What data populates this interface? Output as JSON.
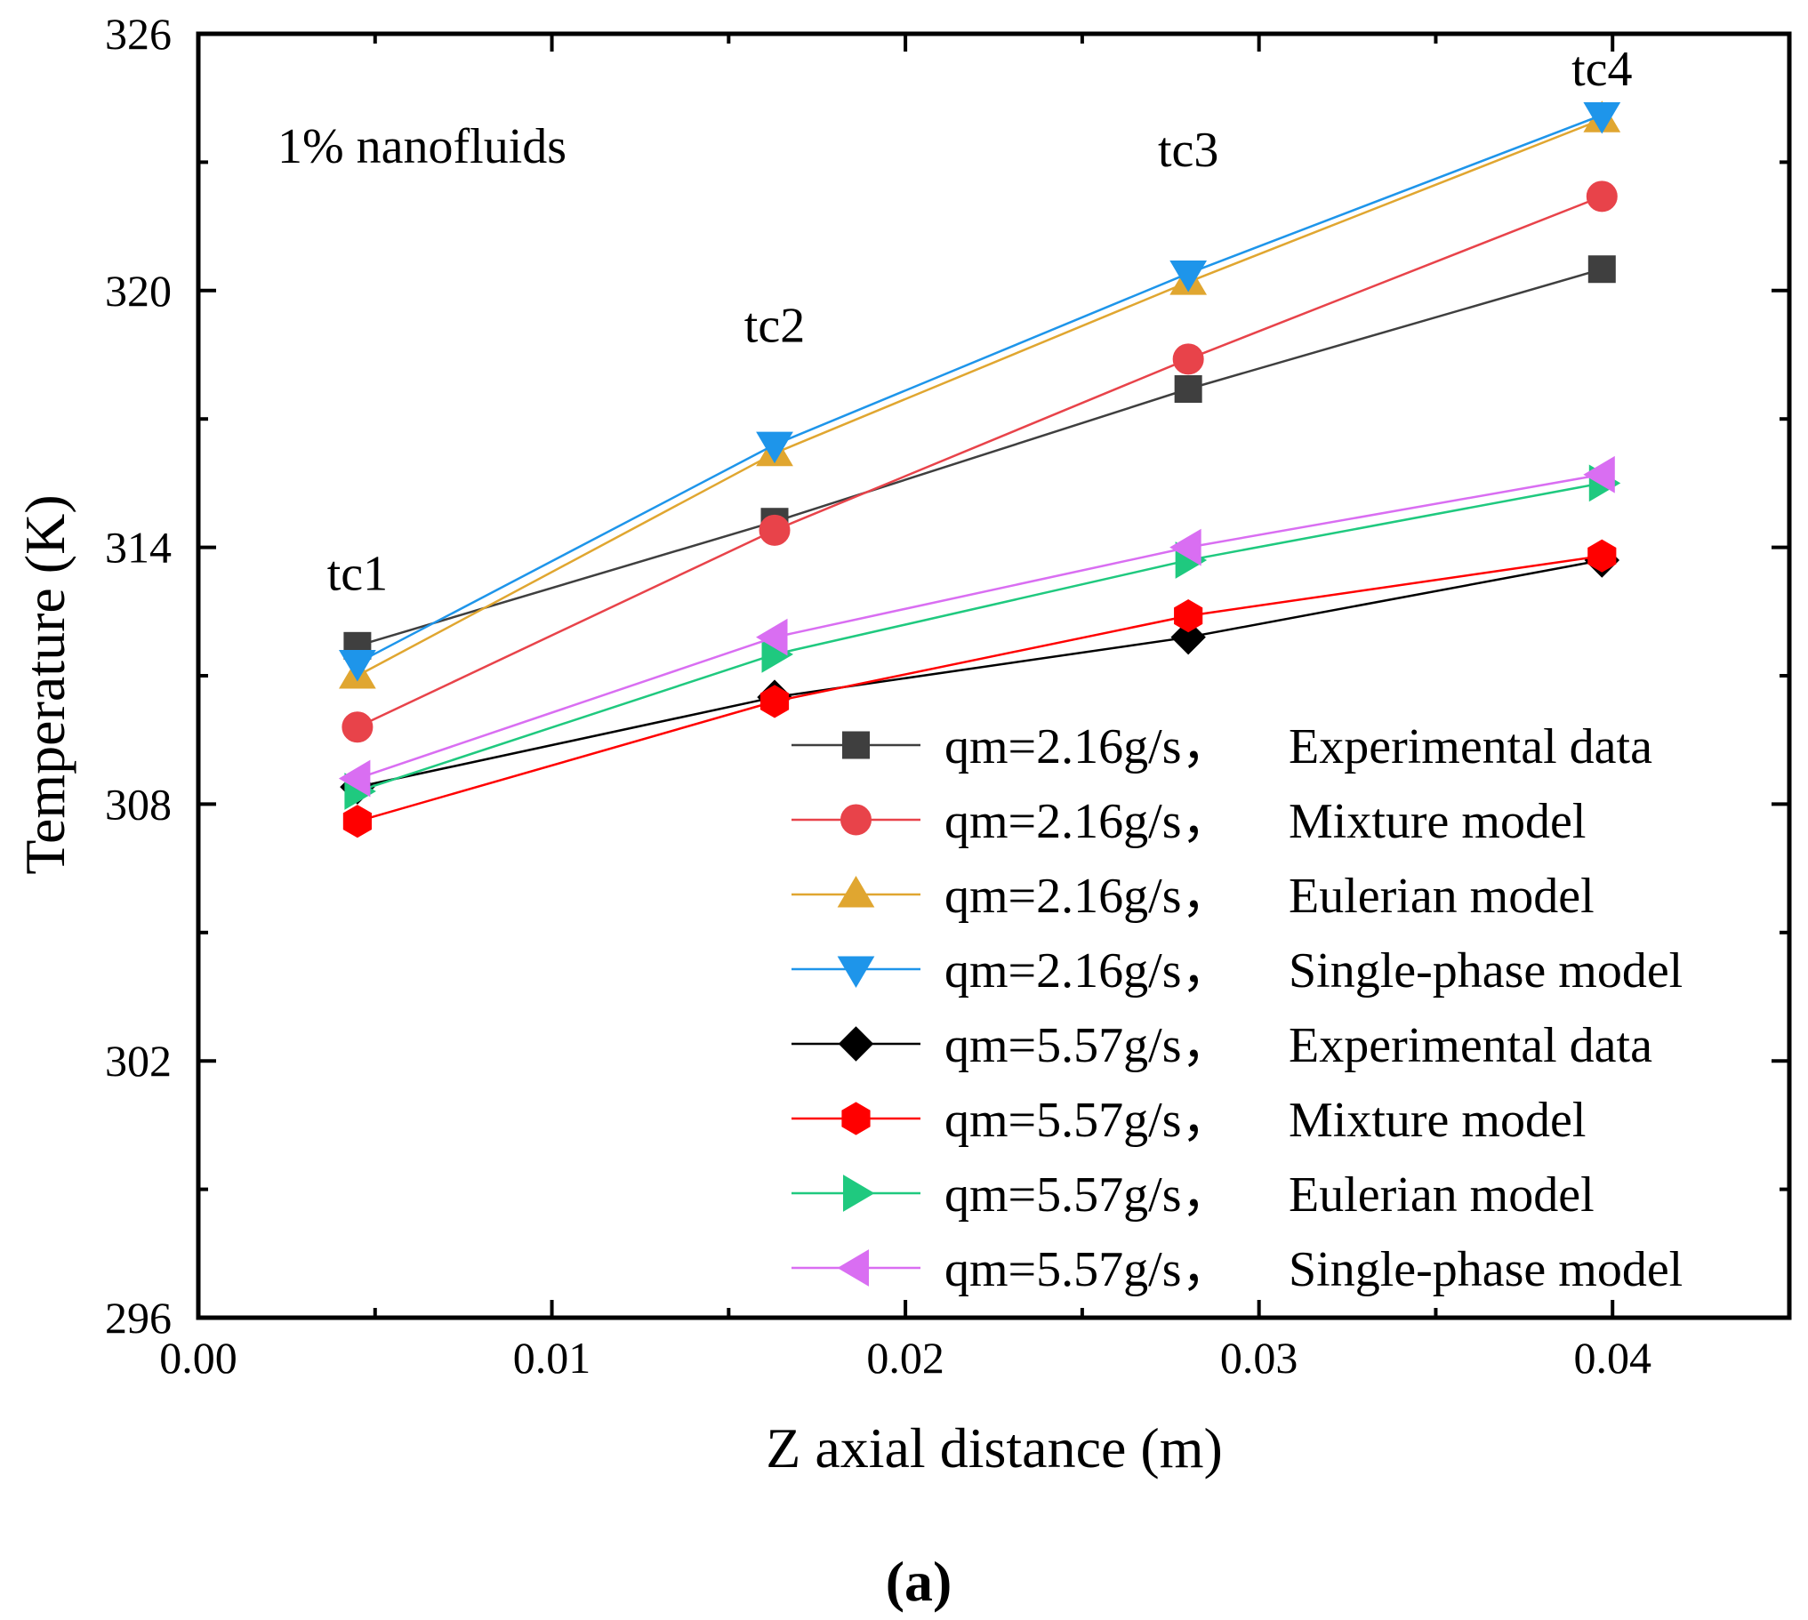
{
  "chart_data": {
    "type": "line",
    "annotation": "1% nanofluids",
    "panel_label": "(a)",
    "xlabel": "Z axial distance (m)",
    "ylabel": "Temperature (K)",
    "xlim": [
      0.0,
      0.045
    ],
    "ylim": [
      296,
      326
    ],
    "x_ticks": [
      0.0,
      0.01,
      0.02,
      0.03,
      0.04
    ],
    "x_tick_labels": [
      "0.00",
      "0.01",
      "0.02",
      "0.03",
      "0.04"
    ],
    "y_ticks": [
      296,
      302,
      308,
      314,
      320,
      326
    ],
    "y_tick_labels": [
      "296",
      "302",
      "308",
      "314",
      "320",
      "326"
    ],
    "grid": false,
    "legend_position": "bottom-right",
    "point_labels": [
      {
        "text": "tc1",
        "x": 0.0045,
        "y": 313.0
      },
      {
        "text": "tc2",
        "x": 0.0163,
        "y": 318.8
      },
      {
        "text": "tc3",
        "x": 0.028,
        "y": 322.9
      },
      {
        "text": "tc4",
        "x": 0.0397,
        "y": 324.8
      }
    ],
    "x": [
      0.0045,
      0.0163,
      0.028,
      0.0397
    ],
    "series": [
      {
        "name": "qm=2.16g/s，Experimental data",
        "color": "#3f3f3f",
        "marker": "square",
        "values": [
          311.7,
          314.6,
          317.7,
          320.5
        ]
      },
      {
        "name": "qm=2.16g/s，Mixture model",
        "color": "#e8434a",
        "marker": "circle",
        "values": [
          309.8,
          314.4,
          318.4,
          322.2
        ]
      },
      {
        "name": "qm=2.16g/s，Eulerian model",
        "color": "#e0a630",
        "marker": "triangle-up",
        "values": [
          311.0,
          316.2,
          320.2,
          324.0
        ]
      },
      {
        "name": "qm=2.16g/s，Single-phase model",
        "color": "#1e95ea",
        "marker": "triangle-down",
        "values": [
          311.3,
          316.4,
          320.4,
          324.1
        ]
      },
      {
        "name": "qm=5.57g/s，Experimental data",
        "color": "#000000",
        "marker": "diamond",
        "values": [
          308.4,
          310.5,
          311.9,
          313.7
        ]
      },
      {
        "name": "qm=5.57g/s，Mixture model",
        "color": "#ff0000",
        "marker": "hexagon",
        "values": [
          307.6,
          310.4,
          312.4,
          313.8
        ]
      },
      {
        "name": "qm=5.57g/s，Eulerian model",
        "color": "#1fc97f",
        "marker": "triangle-right",
        "values": [
          308.3,
          311.5,
          313.7,
          315.5
        ]
      },
      {
        "name": "qm=5.57g/s，Single-phase model",
        "color": "#d96ef2",
        "marker": "triangle-left",
        "values": [
          308.6,
          311.9,
          314.0,
          315.7
        ]
      }
    ]
  }
}
